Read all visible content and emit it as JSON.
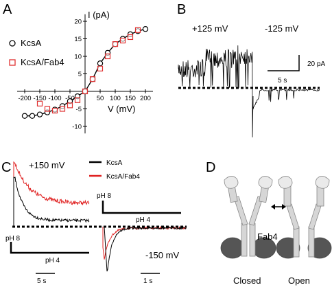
{
  "panels": {
    "A": {
      "letter": "A"
    },
    "B": {
      "letter": "B"
    },
    "C": {
      "letter": "C"
    },
    "D": {
      "letter": "D"
    }
  },
  "chart_data": [
    {
      "type": "scatter",
      "panel": "A",
      "xlabel": "V (mV)",
      "ylabel": "I (pA)",
      "xlim": [
        -225,
        225
      ],
      "ylim": [
        -12,
        22
      ],
      "xticks": [
        -200,
        -150,
        -100,
        -50,
        50,
        100,
        150,
        200
      ],
      "yticks": [
        -10,
        -5,
        5,
        10,
        15,
        20
      ],
      "legend_placement": "left",
      "series": [
        {
          "name": "KcsA",
          "marker": "circle",
          "color": "#000000",
          "x": [
            -200,
            -175,
            -150,
            -125,
            -100,
            -75,
            -50,
            -25,
            0,
            25,
            50,
            75,
            100,
            125,
            150,
            175,
            200
          ],
          "y": [
            -7,
            -7,
            -6.6,
            -6,
            -5.2,
            -4.2,
            -2.8,
            -1.4,
            0,
            3.5,
            8,
            11,
            13.5,
            15,
            16.3,
            17.2,
            17.8
          ]
        },
        {
          "name": "KcsA/Fab4",
          "marker": "square",
          "color": "#e03030",
          "x": [
            -150,
            -125,
            -100,
            -75,
            -50,
            -25,
            0,
            25,
            50,
            75,
            100,
            125,
            150,
            175
          ],
          "y": [
            -3.5,
            -5,
            -5.5,
            -5,
            -4,
            -2.5,
            0,
            3.5,
            6.5,
            10,
            13.5,
            14.5,
            15.5,
            17.5
          ]
        }
      ]
    },
    {
      "type": "line",
      "panel": "B",
      "labels": {
        "pos_voltage": "+125 mV",
        "neg_voltage": "-125 mV"
      },
      "scalebar": {
        "y_label": "20 pA",
        "x_label": "5 s"
      }
    },
    {
      "type": "line",
      "panel": "C",
      "labels": {
        "pos_voltage": "+150 mV",
        "neg_voltage": "-150 mV"
      },
      "series": [
        {
          "name": "KcsA",
          "color": "#000000"
        },
        {
          "name": "KcsA/Fab4",
          "color": "#e02020"
        }
      ],
      "protocol_top": {
        "ph_start": "pH 8",
        "ph_end": "pH 4"
      },
      "protocol_bottom": {
        "ph_start": "pH 8",
        "ph_end": "pH 4"
      },
      "scalebar_left": "5 s",
      "scalebar_right": "1 s"
    }
  ],
  "diagram_D": {
    "closed_label": "Closed",
    "open_label": "Open",
    "fab_label": "Fab4"
  }
}
